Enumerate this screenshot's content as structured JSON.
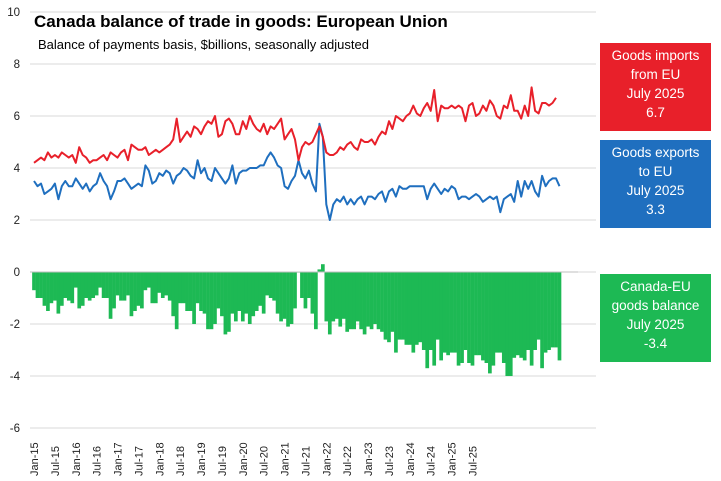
{
  "colors": {
    "imports": "#e8202a",
    "exports": "#1f6fbf",
    "balance": "#1db954",
    "grid": "#d9d9d9",
    "axis_text": "#222222"
  },
  "callouts": {
    "imports": [
      "Goods imports",
      "from EU",
      "July 2025",
      "6.7"
    ],
    "exports": [
      "Goods exports",
      "to EU",
      "July 2025",
      "3.3"
    ],
    "balance": [
      "Canada-EU",
      "goods balance",
      "July 2025",
      "-3.4"
    ]
  },
  "chart_data": {
    "type": "line",
    "title": "Canada balance of trade in goods: European Union",
    "subtitle": "Balance of payments basis, $billions, seasonally adjusted",
    "ylim": [
      -6,
      10
    ],
    "yticks": [
      "10",
      "8",
      "6",
      "4",
      "2",
      "0",
      "-2",
      "-4",
      "-6"
    ],
    "x_start": "Jan-15",
    "x_tick_labels": [
      "Jan-15",
      "Jul-15",
      "Jan-16",
      "Jul-16",
      "Jan-17",
      "Jul-17",
      "Jan-18",
      "Jul-18",
      "Jan-19",
      "Jul-19",
      "Jan-20",
      "Jul-20",
      "Jan-21",
      "Jul-21",
      "Jan-22",
      "Jul-22",
      "Jan-23",
      "Jul-23",
      "Jan-24",
      "Jul-24",
      "Jan-25",
      "Jul-25"
    ],
    "grid": "horizontal",
    "series": [
      {
        "name": "Goods imports from EU",
        "type": "line",
        "values": [
          4.2,
          4.3,
          4.4,
          4.3,
          4.6,
          4.4,
          4.5,
          4.4,
          4.6,
          4.5,
          4.4,
          4.5,
          4.2,
          4.8,
          4.5,
          4.4,
          4.2,
          4.3,
          4.3,
          4.4,
          4.5,
          4.3,
          4.6,
          4.5,
          4.4,
          4.6,
          4.7,
          4.3,
          4.9,
          4.8,
          4.7,
          4.7,
          4.8,
          4.5,
          4.6,
          4.7,
          4.6,
          4.7,
          4.8,
          4.9,
          5.1,
          5.9,
          5.0,
          5.2,
          5.4,
          5.2,
          5.6,
          5.5,
          5.3,
          5.6,
          5.8,
          5.7,
          6.0,
          5.2,
          5.3,
          5.8,
          5.9,
          5.7,
          5.3,
          5.3,
          5.8,
          5.5,
          6.0,
          5.7,
          5.5,
          5.4,
          5.7,
          5.3,
          5.6,
          5.5,
          5.7,
          5.9,
          5.1,
          5.3,
          5.5,
          5.1,
          4.3,
          4.8,
          5.0,
          4.9,
          5.0,
          5.3,
          5.6,
          5.2,
          4.6,
          4.5,
          4.5,
          4.6,
          4.8,
          4.7,
          4.9,
          5.0,
          4.8,
          4.7,
          5.1,
          5.0,
          5.0,
          5.1,
          4.9,
          5.2,
          5.4,
          5.3,
          5.8,
          5.5,
          6.0,
          5.9,
          5.8,
          6.0,
          6.1,
          6.4,
          6.1,
          6.0,
          6.3,
          6.5,
          6.2,
          7.0,
          5.8,
          6.4,
          6.3,
          6.3,
          6.4,
          6.3,
          6.4,
          6.3,
          5.8,
          6.4,
          6.5,
          6.0,
          6.1,
          6.4,
          6.2,
          6.6,
          6.4,
          6.0,
          5.9,
          6.4,
          6.3,
          6.8,
          6.2,
          6.2,
          5.9,
          6.4,
          6.0,
          7.1,
          6.2,
          6.1,
          6.5,
          6.5,
          6.4,
          6.5,
          6.7
        ]
      },
      {
        "name": "Goods exports to EU",
        "type": "line",
        "values": [
          3.5,
          3.3,
          3.4,
          3.0,
          3.1,
          3.2,
          3.4,
          2.8,
          3.3,
          3.5,
          3.3,
          3.3,
          3.6,
          3.4,
          3.2,
          3.4,
          3.1,
          3.3,
          3.4,
          3.8,
          3.5,
          3.3,
          2.8,
          3.1,
          3.5,
          3.5,
          3.6,
          3.4,
          3.2,
          3.3,
          3.4,
          3.3,
          4.1,
          3.9,
          3.4,
          3.5,
          3.8,
          3.7,
          3.9,
          3.8,
          3.4,
          3.7,
          3.8,
          4.0,
          3.9,
          3.7,
          3.6,
          4.3,
          3.8,
          4.0,
          3.6,
          3.5,
          4.0,
          3.8,
          3.6,
          3.4,
          3.6,
          4.1,
          3.4,
          3.8,
          3.9,
          3.9,
          4.0,
          4.0,
          4.0,
          4.1,
          4.1,
          4.4,
          4.6,
          4.4,
          4.1,
          4.0,
          3.3,
          3.2,
          3.5,
          3.7,
          4.3,
          3.8,
          3.6,
          3.9,
          3.4,
          3.1,
          5.7,
          5.2,
          2.6,
          2.0,
          2.6,
          2.8,
          2.7,
          2.9,
          2.6,
          2.8,
          2.6,
          2.8,
          2.9,
          2.6,
          2.9,
          2.9,
          2.8,
          3.0,
          3.1,
          2.7,
          3.1,
          3.2,
          2.9,
          3.3,
          3.2,
          3.2,
          3.3,
          3.3,
          3.3,
          3.3,
          3.3,
          2.8,
          3.2,
          3.4,
          3.2,
          3.0,
          3.2,
          3.1,
          3.3,
          3.2,
          2.8,
          2.9,
          2.9,
          2.8,
          2.9,
          3.0,
          2.9,
          2.7,
          2.8,
          2.9,
          2.8,
          2.9,
          2.3,
          2.8,
          2.9,
          3.0,
          2.7,
          3.5,
          2.9,
          3.5,
          3.2,
          3.5,
          3.1,
          2.9,
          3.7,
          3.3,
          3.5,
          3.6,
          3.6,
          3.3
        ]
      },
      {
        "name": "Canada-EU goods balance",
        "type": "bar",
        "values": [
          -0.7,
          -1.0,
          -1.0,
          -1.3,
          -1.5,
          -1.2,
          -1.1,
          -1.6,
          -1.3,
          -1.0,
          -1.1,
          -1.2,
          -0.6,
          -1.4,
          -1.3,
          -1.0,
          -1.1,
          -1.0,
          -0.9,
          -0.6,
          -1.0,
          -1.0,
          -1.8,
          -1.4,
          -0.9,
          -1.1,
          -1.1,
          -0.9,
          -1.7,
          -1.5,
          -1.3,
          -1.4,
          -0.7,
          -0.6,
          -1.2,
          -1.2,
          -0.8,
          -1.0,
          -0.9,
          -1.1,
          -1.7,
          -2.2,
          -1.2,
          -1.2,
          -1.5,
          -1.5,
          -2.0,
          -1.2,
          -1.5,
          -1.6,
          -2.2,
          -2.2,
          -2.0,
          -1.4,
          -1.7,
          -2.4,
          -2.3,
          -1.6,
          -1.9,
          -1.5,
          -1.9,
          -1.6,
          -2.0,
          -1.7,
          -1.5,
          -1.3,
          -1.6,
          -0.9,
          -1.0,
          -1.1,
          -1.6,
          -1.9,
          -1.8,
          -2.1,
          -2.0,
          -1.4,
          0.0,
          -1.0,
          -1.4,
          -1.0,
          -1.6,
          -2.2,
          0.1,
          0.3,
          -1.9,
          -2.4,
          -1.9,
          -1.8,
          -2.1,
          -1.8,
          -2.3,
          -2.2,
          -2.2,
          -1.9,
          -2.2,
          -2.4,
          -2.1,
          -2.2,
          -2.0,
          -2.2,
          -2.3,
          -2.6,
          -2.7,
          -2.3,
          -3.1,
          -2.6,
          -2.6,
          -2.8,
          -2.8,
          -3.1,
          -2.8,
          -2.7,
          -3.0,
          -3.7,
          -3.0,
          -3.6,
          -2.6,
          -3.4,
          -3.1,
          -3.2,
          -3.1,
          -3.1,
          -3.6,
          -3.5,
          -3.0,
          -3.5,
          -3.6,
          -3.2,
          -3.2,
          -3.4,
          -3.5,
          -3.9,
          -3.6,
          -3.1,
          -3.1,
          -3.5,
          -4.0,
          -4.0,
          -3.3,
          -3.2,
          -3.3,
          -3.4,
          -3.0,
          -3.6,
          -3.0,
          -2.6,
          -3.7,
          -3.1,
          -3.0,
          -2.9,
          -2.9,
          -3.4
        ]
      }
    ]
  }
}
